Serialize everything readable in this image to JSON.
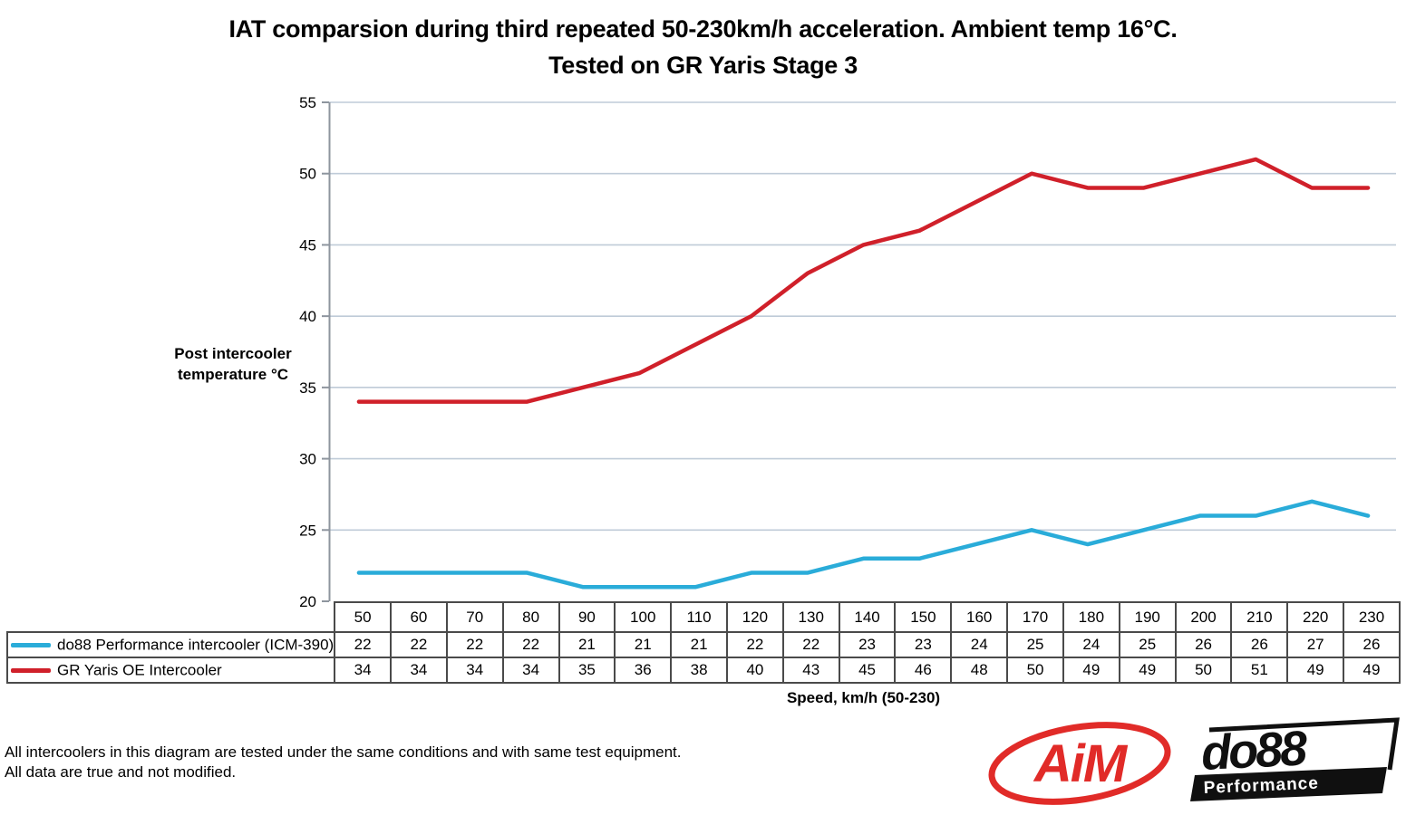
{
  "title": {
    "line1": "IAT comparsion during third repeated 50-230km/h acceleration. Ambient temp 16°C.",
    "line2": "Tested on GR Yaris Stage 3"
  },
  "y_axis": {
    "label_line1": "Post intercooler",
    "label_line2": "temperature °C",
    "tick_labels": [
      20,
      25,
      30,
      35,
      40,
      45,
      50,
      55
    ]
  },
  "x_axis": {
    "label": "Speed, km/h (50-230)"
  },
  "chart_data": {
    "type": "line",
    "title": "IAT comparsion during third repeated 50-230km/h acceleration. Ambient temp 16°C. Tested on GR Yaris Stage 3",
    "xlabel": "Speed, km/h (50-230)",
    "ylabel": "Post intercooler temperature °C",
    "ylim": [
      20,
      55
    ],
    "ytick_step": 5,
    "grid": "horizontal",
    "legend_position": "table-left",
    "categories": [
      50,
      60,
      70,
      80,
      90,
      100,
      110,
      120,
      130,
      140,
      150,
      160,
      170,
      180,
      190,
      200,
      210,
      220,
      230
    ],
    "series": [
      {
        "name": "do88 Performance intercooler (ICM-390)",
        "color": "#2AACD9",
        "values": [
          22,
          22,
          22,
          22,
          21,
          21,
          21,
          22,
          22,
          23,
          23,
          24,
          25,
          24,
          25,
          26,
          26,
          27,
          26
        ]
      },
      {
        "name": "GR Yaris OE Intercooler",
        "color": "#D0202A",
        "values": [
          34,
          34,
          34,
          34,
          35,
          36,
          38,
          40,
          43,
          45,
          46,
          48,
          50,
          49,
          49,
          50,
          51,
          49,
          49
        ]
      }
    ]
  },
  "colors": {
    "gridline": "#BFCBD8",
    "axis": "#8E959E",
    "table_border": "#4a4a4a",
    "aim_red": "#E12B28",
    "do88_black": "#101010"
  },
  "footer": {
    "line1": "All intercoolers in this diagram are tested under the same conditions and with same test equipment.",
    "line2": "All data are true and not modified."
  },
  "logos": {
    "aim_text": "AiM",
    "do88_text": "do88",
    "do88_sub": "Performance"
  }
}
